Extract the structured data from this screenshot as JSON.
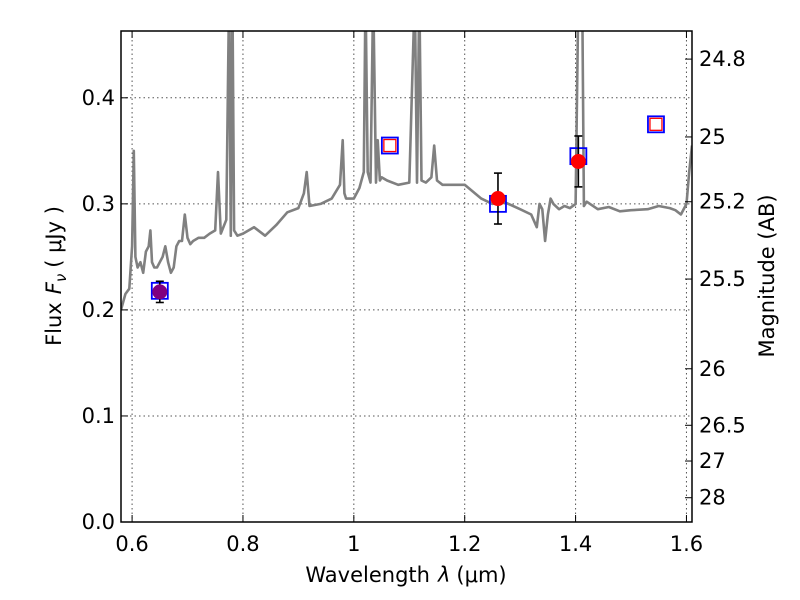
{
  "chart_data": {
    "type": "scatter",
    "xlabel": "Wavelength",
    "xlabel_symbol": "λ",
    "xlabel_unit": "(μm)",
    "ylabel": "Flux",
    "ylabel_symbol": "F",
    "ylabel_subscript": "ν",
    "ylabel_unit": "( μJy )",
    "y2label": "Magnitude (AB)",
    "xlim": [
      0.58,
      1.61
    ],
    "ylim": [
      0.0,
      0.463
    ],
    "grid": true,
    "xticks": [
      0.6,
      0.8,
      1.0,
      1.2,
      1.4,
      1.6
    ],
    "xtick_labels": [
      "0.6",
      "0.8",
      "1",
      "1.2",
      "1.4",
      "1.6"
    ],
    "yticks": [
      0.0,
      0.1,
      0.2,
      0.3,
      0.4
    ],
    "ytick_labels": [
      "0.0",
      "0.1",
      "0.2",
      "0.3",
      "0.4"
    ],
    "y2ticks": [
      {
        "label": "24.8",
        "flux": 0.4365
      },
      {
        "label": "25",
        "flux": 0.3631
      },
      {
        "label": "25.2",
        "flux": 0.302
      },
      {
        "label": "25.5",
        "flux": 0.2291
      },
      {
        "label": "26",
        "flux": 0.1445
      },
      {
        "label": "26.5",
        "flux": 0.0912
      },
      {
        "label": "27",
        "flux": 0.0575
      },
      {
        "label": "28",
        "flux": 0.0229
      }
    ],
    "series": [
      {
        "kind": "spectrum",
        "color": "#808080",
        "x": [
          0.58,
          0.588,
          0.595,
          0.6,
          0.603,
          0.606,
          0.61,
          0.615,
          0.62,
          0.625,
          0.63,
          0.633,
          0.636,
          0.64,
          0.645,
          0.65,
          0.655,
          0.66,
          0.665,
          0.67,
          0.675,
          0.68,
          0.685,
          0.69,
          0.695,
          0.7,
          0.705,
          0.71,
          0.72,
          0.73,
          0.74,
          0.75,
          0.755,
          0.76,
          0.77,
          0.775,
          0.778,
          0.781,
          0.784,
          0.79,
          0.8,
          0.82,
          0.84,
          0.86,
          0.88,
          0.9,
          0.91,
          0.915,
          0.92,
          0.94,
          0.96,
          0.975,
          0.98,
          0.983,
          0.986,
          0.99,
          1.0,
          1.01,
          1.018,
          1.021,
          1.025,
          1.03,
          1.035,
          1.04,
          1.043,
          1.047,
          1.05,
          1.06,
          1.08,
          1.1,
          1.11,
          1.114,
          1.118,
          1.122,
          1.13,
          1.14,
          1.145,
          1.15,
          1.16,
          1.2,
          1.23,
          1.25,
          1.27,
          1.3,
          1.32,
          1.33,
          1.335,
          1.34,
          1.345,
          1.35,
          1.355,
          1.36,
          1.37,
          1.38,
          1.39,
          1.4,
          1.405,
          1.408,
          1.412,
          1.415,
          1.42,
          1.44,
          1.46,
          1.48,
          1.5,
          1.53,
          1.55,
          1.57,
          1.58,
          1.59,
          1.6,
          1.605,
          1.61
        ],
        "y": [
          0.2,
          0.215,
          0.22,
          0.26,
          0.35,
          0.25,
          0.24,
          0.245,
          0.235,
          0.255,
          0.26,
          0.275,
          0.245,
          0.24,
          0.24,
          0.245,
          0.25,
          0.26,
          0.245,
          0.235,
          0.24,
          0.26,
          0.265,
          0.265,
          0.29,
          0.268,
          0.262,
          0.265,
          0.268,
          0.268,
          0.272,
          0.275,
          0.33,
          0.272,
          0.285,
          0.5,
          0.27,
          0.5,
          0.275,
          0.27,
          0.272,
          0.278,
          0.27,
          0.28,
          0.292,
          0.296,
          0.31,
          0.33,
          0.298,
          0.3,
          0.305,
          0.318,
          0.36,
          0.31,
          0.305,
          0.305,
          0.305,
          0.315,
          0.33,
          0.5,
          0.33,
          0.32,
          0.5,
          0.32,
          0.36,
          0.322,
          0.325,
          0.322,
          0.318,
          0.32,
          0.5,
          0.32,
          0.5,
          0.322,
          0.32,
          0.325,
          0.355,
          0.322,
          0.318,
          0.318,
          0.305,
          0.3,
          0.302,
          0.295,
          0.29,
          0.278,
          0.3,
          0.295,
          0.265,
          0.29,
          0.305,
          0.3,
          0.295,
          0.298,
          0.296,
          0.3,
          0.5,
          0.5,
          0.5,
          0.298,
          0.302,
          0.295,
          0.297,
          0.293,
          0.294,
          0.295,
          0.298,
          0.296,
          0.294,
          0.29,
          0.3,
          0.33,
          0.355
        ]
      },
      {
        "kind": "model_photometry",
        "marker": "square",
        "color": "#0000ff",
        "x": [
          0.65,
          1.065,
          1.26,
          1.405,
          1.545
        ],
        "y": [
          0.218,
          0.355,
          0.3,
          0.345,
          0.375
        ]
      },
      {
        "kind": "observed_upper_limit",
        "marker": "open-square",
        "color": "#ff0000",
        "x": [
          1.065,
          1.545
        ],
        "y": [
          0.355,
          0.375
        ]
      },
      {
        "kind": "observed",
        "marker": "circle",
        "color": "#ff0000",
        "x": [
          1.26,
          1.405
        ],
        "y": [
          0.305,
          0.34
        ],
        "err": [
          0.024,
          0.024
        ]
      },
      {
        "kind": "observed",
        "marker": "circle",
        "color": "#800080",
        "x": [
          0.65
        ],
        "y": [
          0.217
        ],
        "err": [
          0.01
        ]
      }
    ]
  }
}
